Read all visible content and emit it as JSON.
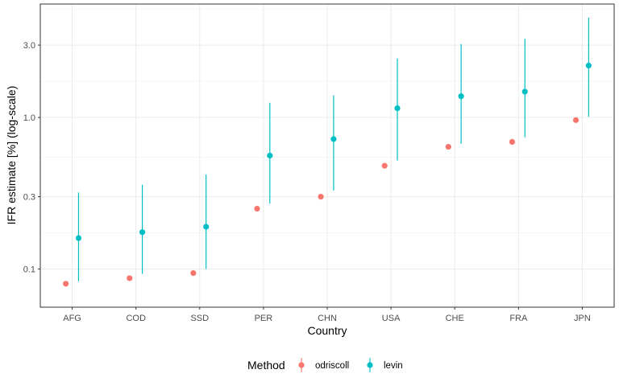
{
  "chart_data": {
    "type": "scatter",
    "xlabel": "Country",
    "ylabel": "IFR estimate [%] (log-scale)",
    "y_scale": "log10",
    "ylim": [
      0.056,
      5.6
    ],
    "y_ticks": [
      0.1,
      0.3,
      1.0,
      3.0
    ],
    "y_tick_labels": [
      "0.1",
      "0.3",
      "1.0",
      "3.0"
    ],
    "categories": [
      "AFG",
      "COD",
      "SSD",
      "PER",
      "CHN",
      "USA",
      "CHE",
      "FRA",
      "JPN"
    ],
    "grid": true,
    "legend": {
      "title": "Method",
      "position": "bottom"
    },
    "series": [
      {
        "name": "odriscoll",
        "color": "#F8766D",
        "values": [
          0.08,
          0.087,
          0.094,
          0.25,
          0.3,
          0.48,
          0.64,
          0.69,
          0.96
        ]
      },
      {
        "name": "levin",
        "color": "#00BFC4",
        "values": [
          0.16,
          0.175,
          0.19,
          0.56,
          0.72,
          1.15,
          1.38,
          1.48,
          2.2
        ],
        "lower": [
          0.083,
          0.093,
          0.1,
          0.27,
          0.33,
          0.52,
          0.67,
          0.74,
          1.01
        ],
        "upper": [
          0.32,
          0.36,
          0.42,
          1.25,
          1.4,
          2.45,
          3.05,
          3.3,
          4.55
        ]
      }
    ]
  }
}
